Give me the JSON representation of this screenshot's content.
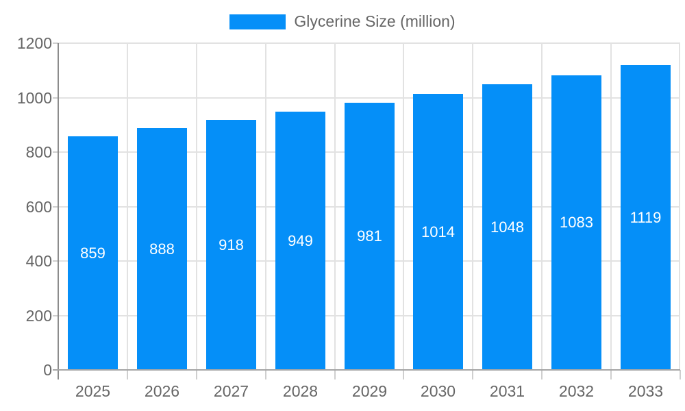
{
  "chart_data": {
    "type": "bar",
    "title": "",
    "legend": "Glycerine Size (million)",
    "legend_position": "top",
    "categories": [
      "2025",
      "2026",
      "2027",
      "2028",
      "2029",
      "2030",
      "2031",
      "2032",
      "2033"
    ],
    "series": [
      {
        "name": "Glycerine Size (million)",
        "values": [
          859,
          888,
          918,
          949,
          981,
          1014,
          1048,
          1083,
          1119
        ]
      }
    ],
    "xlabel": "",
    "ylabel": "",
    "ylim": [
      0,
      1200
    ],
    "yticks": [
      0,
      200,
      400,
      600,
      800,
      1000,
      1200
    ],
    "grid": true,
    "value_labels": "centered-inside-bars",
    "colors": {
      "bar": "#058ff8",
      "grid": "#e2e2e2",
      "y_axis": "#8c8c8c",
      "x_axis": "#a6a6a6",
      "tick": "#cfcfcf",
      "axis_label": "#666666",
      "value_label": "#ffffff"
    }
  }
}
